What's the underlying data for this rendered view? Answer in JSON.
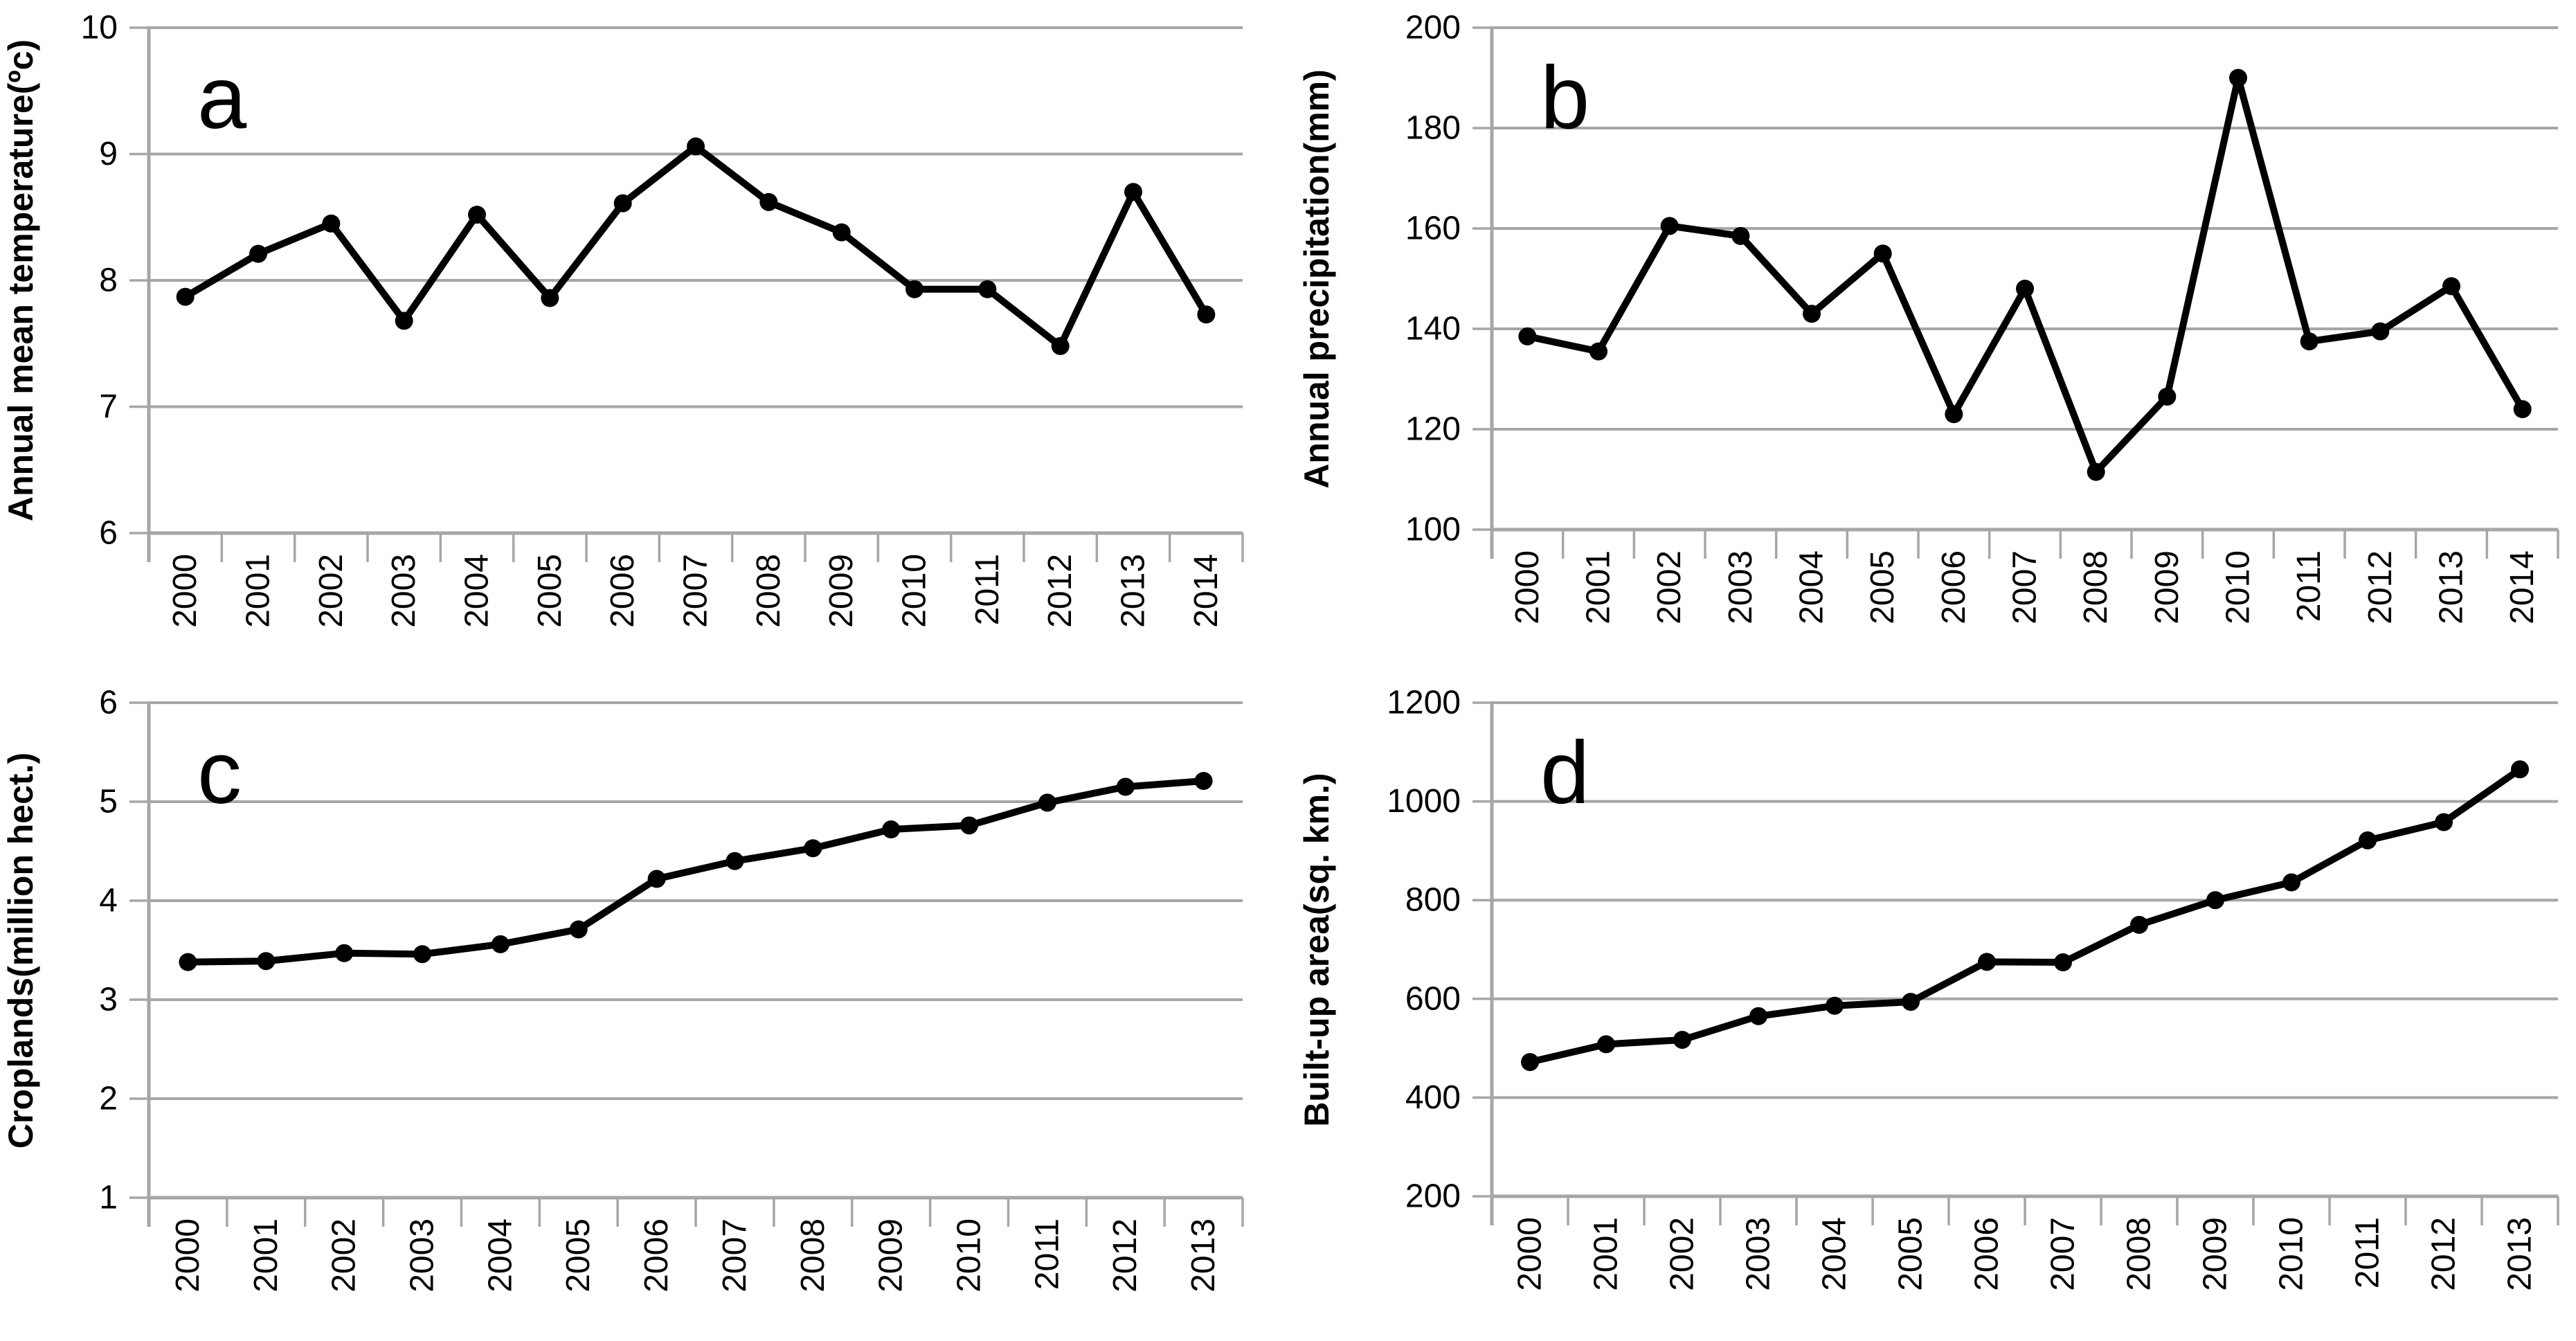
{
  "figure": {
    "description": "Four-panel time-series figure",
    "panel_letters": [
      "a",
      "b",
      "c",
      "d"
    ]
  },
  "colors": {
    "line": "#000000",
    "marker": "#000000",
    "grid": "#a6a6a6",
    "axis": "#a6a6a6",
    "text": "#000000"
  },
  "chart_data": [
    {
      "id": "a",
      "type": "line",
      "panel_label": "a",
      "ylabel": "Annual mean temperature(ºc)",
      "xlabel": "",
      "categories": [
        "2000",
        "2001",
        "2002",
        "2003",
        "2004",
        "2005",
        "2006",
        "2007",
        "2008",
        "2009",
        "2010",
        "2011",
        "2012",
        "2013",
        "2014"
      ],
      "values": [
        7.87,
        8.21,
        8.45,
        7.68,
        8.52,
        7.86,
        8.61,
        9.06,
        8.62,
        8.38,
        7.93,
        7.93,
        7.48,
        8.7,
        7.73
      ],
      "ylim": [
        6,
        10
      ],
      "yticks": [
        6,
        7,
        8,
        9,
        10
      ],
      "grid": "horizontal",
      "legend": "none"
    },
    {
      "id": "b",
      "type": "line",
      "panel_label": "b",
      "ylabel": "Annual precipitation(mm)",
      "xlabel": "",
      "categories": [
        "2000",
        "2001",
        "2002",
        "2003",
        "2004",
        "2005",
        "2006",
        "2007",
        "2008",
        "2009",
        "2010",
        "2011",
        "2012",
        "2013",
        "2014"
      ],
      "values": [
        138.5,
        135.5,
        160.5,
        158.5,
        143,
        155,
        123,
        148,
        111.5,
        126.5,
        190,
        137.5,
        139.5,
        148.5,
        124
      ],
      "ylim": [
        100,
        200
      ],
      "yticks": [
        100,
        120,
        140,
        160,
        180,
        200
      ],
      "grid": "horizontal",
      "legend": "none"
    },
    {
      "id": "c",
      "type": "line",
      "panel_label": "c",
      "ylabel": "Croplands(million hect.)",
      "xlabel": "",
      "categories": [
        "2000",
        "2001",
        "2002",
        "2003",
        "2004",
        "2005",
        "2006",
        "2007",
        "2008",
        "2009",
        "2010",
        "2011",
        "2012",
        "2013"
      ],
      "values": [
        3.38,
        3.39,
        3.47,
        3.46,
        3.56,
        3.71,
        4.22,
        4.4,
        4.53,
        4.72,
        4.76,
        4.99,
        5.15,
        5.21
      ],
      "ylim": [
        1,
        6
      ],
      "yticks": [
        1,
        2,
        3,
        4,
        5,
        6
      ],
      "grid": "horizontal",
      "legend": "none"
    },
    {
      "id": "d",
      "type": "line",
      "panel_label": "d",
      "ylabel": "Built-up area(sq. km.)",
      "xlabel": "",
      "categories": [
        "2000",
        "2001",
        "2002",
        "2003",
        "2004",
        "2005",
        "2006",
        "2007",
        "2008",
        "2009",
        "2010",
        "2011",
        "2012",
        "2013"
      ],
      "values": [
        472,
        508,
        517,
        565,
        586,
        594,
        675,
        674,
        750,
        800,
        836,
        921,
        958,
        1065
      ],
      "ylim": [
        200,
        1200
      ],
      "yticks": [
        200,
        400,
        600,
        800,
        1000,
        1200
      ],
      "grid": "horizontal",
      "legend": "none"
    }
  ]
}
